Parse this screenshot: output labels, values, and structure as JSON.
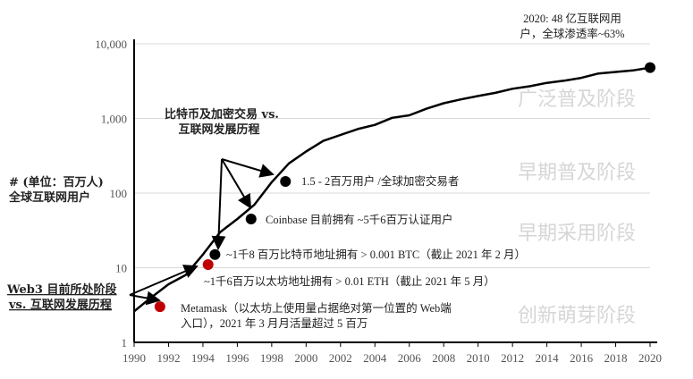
{
  "chart_data": {
    "type": "line",
    "title": "",
    "xlabel": "",
    "ylabel": "# (单位：百万人) 全球互联网用户",
    "ylabel_lines": [
      "# (单位：百万人)",
      "全球互联网用户"
    ],
    "yscale": "log",
    "xlim": [
      1990,
      2020
    ],
    "ylim": [
      1,
      10000
    ],
    "grid": "horizontal",
    "x_ticks": [
      "1990",
      "1992",
      "1994",
      "1996",
      "1998",
      "2000",
      "2002",
      "2004",
      "2006",
      "2008",
      "2010",
      "2012",
      "2014",
      "2016",
      "2018",
      "2020"
    ],
    "y_ticks": [
      {
        "v": 1,
        "label": "1"
      },
      {
        "v": 10,
        "label": "10"
      },
      {
        "v": 100,
        "label": "100"
      },
      {
        "v": 1000,
        "label": "1,000"
      },
      {
        "v": 10000,
        "label": "10,000"
      }
    ],
    "series": [
      {
        "color": "#000000",
        "x": [
          1990,
          1991,
          1992,
          1993,
          1994,
          1995,
          1996,
          1997,
          1998,
          1999,
          2000,
          2001,
          2002,
          2003,
          2004,
          2005,
          2006,
          2007,
          2008,
          2009,
          2010,
          2011,
          2012,
          2013,
          2014,
          2015,
          2016,
          2017,
          2018,
          2019,
          2020
        ],
        "y": [
          2.6,
          4,
          6,
          8,
          15,
          30,
          45,
          70,
          140,
          250,
          360,
          500,
          600,
          720,
          820,
          1020,
          1100,
          1350,
          1600,
          1800,
          2000,
          2200,
          2500,
          2700,
          3000,
          3200,
          3500,
          4000,
          4200,
          4400,
          4800
        ]
      }
    ],
    "points": [
      {
        "x": 2020,
        "y": 4800,
        "color": "#000000"
      },
      {
        "x": 1998.8,
        "y": 143,
        "color": "#000000"
      },
      {
        "x": 1996.8,
        "y": 45,
        "color": "#000000"
      },
      {
        "x": 1994.7,
        "y": 15,
        "color": "#000000"
      },
      {
        "x": 1994.3,
        "y": 11,
        "color": "#c00000"
      },
      {
        "x": 1991.5,
        "y": 3,
        "color": "#c00000"
      }
    ],
    "stages": [
      "广泛普及阶段",
      "早期普及阶段",
      "早期采用阶段",
      "创新萌芽阶段"
    ],
    "annotations": {
      "top": [
        "2020: 48 亿互联网用",
        "户，全球渗透率~63%"
      ],
      "crypto_title": [
        "比特币及加密交易 vs.",
        "互联网发展历程"
      ],
      "web3_title": [
        "Web3 目前所处阶段",
        "vs. 互联网发展历程"
      ],
      "exchange_users": "1.5 - 2百万用户 /全球加密交易者",
      "coinbase": "Coinbase 目前拥有  ~5千6百万认证用户",
      "btc": "~1千8 百万比特币地址拥有 > 0.001 BTC（截止 2021 年 2 月）",
      "eth": "~1千6百万以太坊地址拥有  > 0.01 ETH（截止 2021 年 5 月）",
      "metamask": [
        "Metamask（以太坊上使用量占据绝对第一位置的 Web端",
        "入口），2021 年 3 月月活量超过 5 百万"
      ]
    }
  }
}
